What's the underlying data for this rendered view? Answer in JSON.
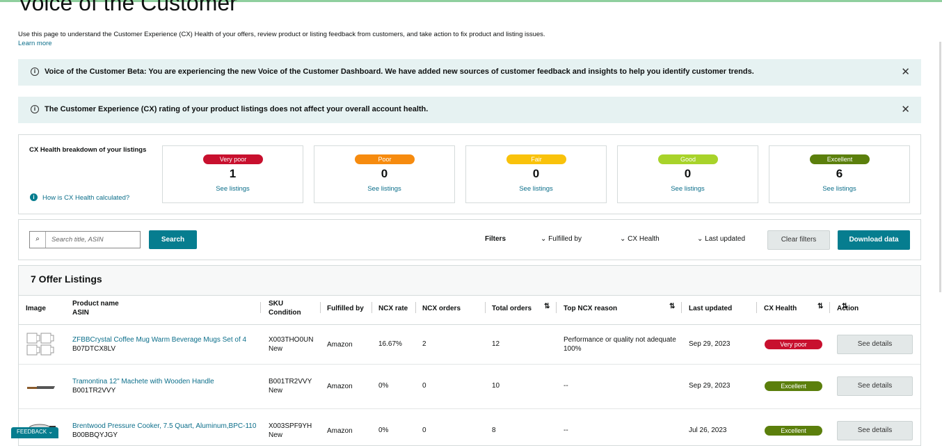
{
  "header": {
    "title": "Voice of the Customer",
    "description": "Use this page to understand the Customer Experience (CX) Health of your offers, review product or listing feedback from customers, and take action to fix product and listing issues.",
    "learn_more": "Learn more"
  },
  "banners": [
    {
      "text": "Voice of the Customer Beta: You are experiencing the new Voice of the Customer Dashboard. We have added new sources of customer feedback and insights to help you identify customer trends."
    },
    {
      "text": "The Customer Experience (CX) rating of your product listings does not affect your overall account health."
    }
  ],
  "breakdown": {
    "title": "CX Health breakdown of your listings",
    "help": "How is CX Health calculated?",
    "cards": [
      {
        "label": "Very poor",
        "count": 1,
        "link": "See listings",
        "color": "#c8102e"
      },
      {
        "label": "Poor",
        "count": 0,
        "link": "See listings",
        "color": "#f68b0f"
      },
      {
        "label": "Fair",
        "count": 0,
        "link": "See listings",
        "color": "#f9c20b"
      },
      {
        "label": "Good",
        "count": 0,
        "link": "See listings",
        "color": "#a8d32a"
      },
      {
        "label": "Excellent",
        "count": 6,
        "link": "See listings",
        "color": "#5b7f0c"
      }
    ]
  },
  "toolbar": {
    "search_placeholder": "Search title, ASIN",
    "search_button": "Search",
    "filters_label": "Filters",
    "filters": [
      "Fulfilled by",
      "CX Health",
      "Last updated"
    ],
    "clear": "Clear filters",
    "download": "Download data"
  },
  "table": {
    "title": "7 Offer Listings",
    "columns": [
      {
        "label": "Image"
      },
      {
        "label": "Product name",
        "sub": "ASIN"
      },
      {
        "label": "SKU",
        "sub": "Condition"
      },
      {
        "label": "Fulfilled by"
      },
      {
        "label": "NCX rate"
      },
      {
        "label": "NCX orders",
        "sortable": true
      },
      {
        "label": "Total orders",
        "sortable": true
      },
      {
        "label": "Top NCX reason"
      },
      {
        "label": "Last updated",
        "sortable": true
      },
      {
        "label": "CX Health",
        "sortable": true
      },
      {
        "label": "Action"
      }
    ],
    "rows": [
      {
        "name": "ZFBBCrystal Coffee Mug Warm Beverage Mugs Set of 4",
        "asin": "B07DTCX8LV",
        "sku": "X003THO0UN",
        "condition": "New",
        "fulfilled_by": "Amazon",
        "ncx_rate": "16.67%",
        "ncx_orders": 2,
        "total_orders": 12,
        "reason": "Performance or quality not adequate",
        "reason_share": "100%",
        "last_updated": "Sep 29, 2023",
        "cx_health": "Very poor",
        "action": "See details"
      },
      {
        "name": "Tramontina 12\" Machete with Wooden Handle",
        "asin": "B001TR2VVY",
        "sku": "B001TR2VVY",
        "condition": "New",
        "fulfilled_by": "Amazon",
        "ncx_rate": "0%",
        "ncx_orders": 0,
        "total_orders": 10,
        "reason": "--",
        "last_updated": "Sep 29, 2023",
        "cx_health": "Excellent",
        "action": "See details"
      },
      {
        "name": "Brentwood Pressure Cooker, 7.5 Quart, Aluminum,BPC-110",
        "asin": "B00BBQYJGY",
        "sku": "X003SPF9YH",
        "condition": "New",
        "fulfilled_by": "Amazon",
        "ncx_rate": "0%",
        "ncx_orders": 0,
        "total_orders": 8,
        "reason": "--",
        "last_updated": "Jul 26, 2023",
        "cx_health": "Excellent",
        "action": "See details"
      }
    ]
  },
  "feedback": "FEEDBACK"
}
